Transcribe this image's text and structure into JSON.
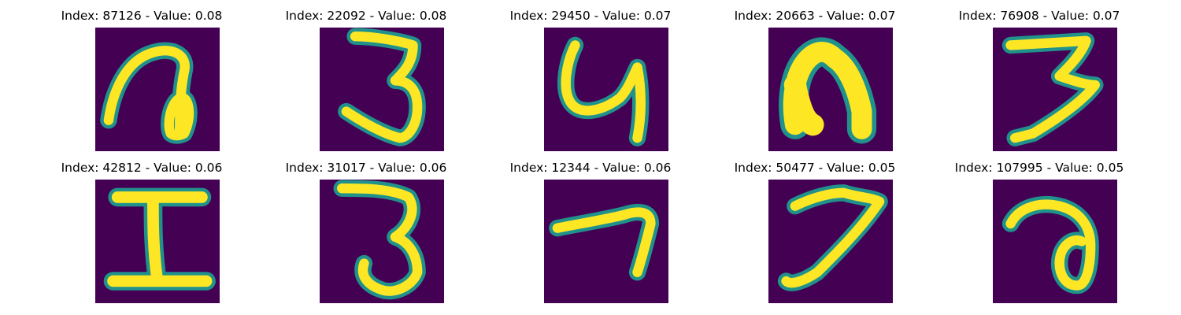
{
  "figure": {
    "colors": {
      "background": "#440154",
      "stroke_mid": "#21918c",
      "stroke_edge": "#5ec962",
      "stroke_core": "#fde725"
    },
    "panels": [
      {
        "title": "Index: 87126 - Value: 0.08",
        "depicts": "handwritten letter a"
      },
      {
        "title": "Index: 22092 - Value: 0.08",
        "depicts": "handwritten digit 3"
      },
      {
        "title": "Index: 29450 - Value: 0.07",
        "depicts": "handwritten letter y"
      },
      {
        "title": "Index: 20663 - Value: 0.07",
        "depicts": "handwritten letter n"
      },
      {
        "title": "Index: 76908 - Value: 0.07",
        "depicts": "handwritten digit 3"
      },
      {
        "title": "Index: 42812 - Value: 0.06",
        "depicts": "handwritten letter I"
      },
      {
        "title": "Index: 31017 - Value: 0.06",
        "depicts": "handwritten digit 3"
      },
      {
        "title": "Index: 12344 - Value: 0.06",
        "depicts": "handwritten digit 7"
      },
      {
        "title": "Index: 50477 - Value: 0.05",
        "depicts": "handwritten digit 7"
      },
      {
        "title": "Index: 107995 - Value: 0.05",
        "depicts": "handwritten letter a"
      }
    ]
  }
}
